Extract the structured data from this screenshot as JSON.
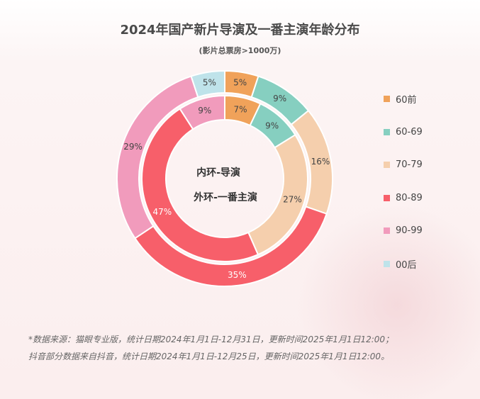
{
  "title": "2024年国产新片导演及一番主演年龄分布",
  "subtitle": "(影片总票房>1000万)",
  "center_labels": {
    "inner": "内环-导演",
    "outer": "外环-一番主演"
  },
  "chart_data": {
    "type": "pie",
    "subtype": "nested-donut",
    "categories": [
      "60前",
      "60-69",
      "70-79",
      "80-89",
      "90-99",
      "00后"
    ],
    "colors": [
      "#f0a25a",
      "#86cfc0",
      "#f5cfad",
      "#f75f6a",
      "#f19bbc",
      "#bfe3ea"
    ],
    "series": [
      {
        "name": "内环-导演",
        "ring": "inner",
        "values": [
          7,
          9,
          27,
          47,
          9,
          0
        ],
        "labels": [
          "7%",
          "9%",
          "27%",
          "47%",
          "9%",
          ""
        ]
      },
      {
        "name": "外环-一番主演",
        "ring": "outer",
        "values": [
          5,
          9,
          16,
          35,
          29,
          5
        ],
        "labels": [
          "5%",
          "9%",
          "16%",
          "35%",
          "29%",
          "5%"
        ]
      }
    ],
    "legend_position": "right"
  },
  "footnotes": [
    "*数据来源：猫眼专业版，统计日期2024年1月1日-12月31日，更新时间2025年1月1日12:00；",
    "抖音部分数据来自抖音，统计日期2024年1月1日-12月25日，更新时间2025年1月1日12:00。"
  ]
}
